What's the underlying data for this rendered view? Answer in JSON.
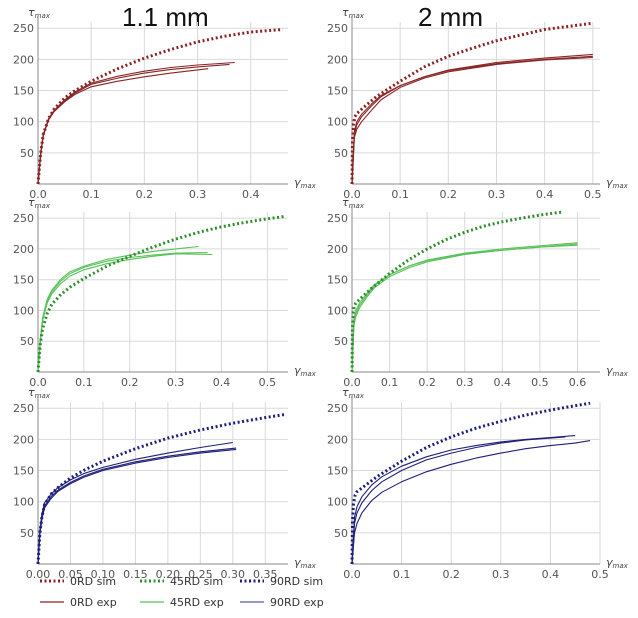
{
  "titles": [
    "1.1 mm",
    "2 mm"
  ],
  "chart_data": [
    {
      "type": "line",
      "panel": "0RD",
      "thickness": "1.1 mm",
      "ylabel": "τmax",
      "xlabel": "γmax",
      "xlim": [
        0,
        0.47
      ],
      "ylim": [
        0,
        260
      ],
      "xticks": [
        0,
        0.1,
        0.2,
        0.3,
        0.4
      ],
      "xtick_labels": [
        "0.0",
        "0.1",
        "0.2",
        "0.3",
        "0.4"
      ],
      "yticks": [
        50,
        100,
        150,
        200,
        250
      ],
      "grid": true,
      "color": "#8a2424",
      "series": [
        {
          "name": "0RD sim",
          "kind": "sim",
          "x": [
            0,
            0.005,
            0.01,
            0.02,
            0.03,
            0.05,
            0.07,
            0.1,
            0.15,
            0.2,
            0.25,
            0.3,
            0.35,
            0.4,
            0.46
          ],
          "y": [
            0,
            50,
            80,
            105,
            120,
            138,
            150,
            165,
            185,
            202,
            216,
            228,
            237,
            244,
            248
          ]
        },
        {
          "kind": "exp",
          "x": [
            0,
            0.005,
            0.01,
            0.02,
            0.03,
            0.05,
            0.07,
            0.1,
            0.15,
            0.2,
            0.25,
            0.3,
            0.37
          ],
          "y": [
            0,
            50,
            80,
            105,
            118,
            135,
            148,
            162,
            173,
            181,
            187,
            191,
            195
          ]
        },
        {
          "kind": "exp",
          "x": [
            0,
            0.005,
            0.01,
            0.02,
            0.03,
            0.05,
            0.07,
            0.1,
            0.15,
            0.2,
            0.25,
            0.3,
            0.36
          ],
          "y": [
            0,
            48,
            78,
            104,
            117,
            133,
            146,
            160,
            170,
            178,
            184,
            188,
            192
          ]
        },
        {
          "kind": "exp",
          "x": [
            0,
            0.005,
            0.01,
            0.02,
            0.03,
            0.05,
            0.07,
            0.1,
            0.15,
            0.2,
            0.25,
            0.32
          ],
          "y": [
            0,
            48,
            78,
            103,
            116,
            132,
            144,
            156,
            165,
            172,
            178,
            185
          ]
        }
      ]
    },
    {
      "type": "line",
      "panel": "0RD",
      "thickness": "2 mm",
      "ylabel": "τmax",
      "xlabel": "γmax",
      "xlim": [
        0,
        0.515
      ],
      "ylim": [
        0,
        260
      ],
      "xticks": [
        0,
        0.1,
        0.2,
        0.3,
        0.4,
        0.5
      ],
      "xtick_labels": [
        "0.0",
        "0.1",
        "0.2",
        "0.3",
        "0.4",
        "0.5"
      ],
      "yticks": [
        50,
        100,
        150,
        200,
        250
      ],
      "grid": true,
      "color": "#8a2424",
      "series": [
        {
          "name": "0RD sim",
          "kind": "sim",
          "x": [
            0,
            0.001,
            0.003,
            0.006,
            0.01,
            0.02,
            0.05,
            0.1,
            0.15,
            0.2,
            0.25,
            0.3,
            0.35,
            0.4,
            0.45,
            0.5
          ],
          "y": [
            0,
            70,
            95,
            108,
            113,
            120,
            140,
            165,
            188,
            205,
            218,
            230,
            239,
            248,
            253,
            258
          ]
        },
        {
          "kind": "exp",
          "x": [
            0,
            0.005,
            0.01,
            0.02,
            0.04,
            0.06,
            0.1,
            0.15,
            0.2,
            0.3,
            0.4,
            0.5
          ],
          "y": [
            0,
            80,
            95,
            108,
            125,
            140,
            158,
            172,
            183,
            195,
            202,
            208
          ]
        },
        {
          "kind": "exp",
          "x": [
            0,
            0.005,
            0.01,
            0.02,
            0.04,
            0.06,
            0.1,
            0.15,
            0.2,
            0.3,
            0.4,
            0.5
          ],
          "y": [
            0,
            85,
            100,
            112,
            128,
            142,
            158,
            172,
            182,
            193,
            200,
            205
          ]
        },
        {
          "kind": "exp",
          "x": [
            0,
            0.005,
            0.01,
            0.02,
            0.04,
            0.06,
            0.1,
            0.15,
            0.2,
            0.3,
            0.4,
            0.5
          ],
          "y": [
            0,
            75,
            88,
            100,
            118,
            135,
            155,
            170,
            180,
            192,
            199,
            203
          ]
        }
      ]
    },
    {
      "type": "line",
      "panel": "45RD",
      "thickness": "1.1 mm",
      "ylabel": "τmax",
      "xlabel": "γmax",
      "xlim": [
        0,
        0.545
      ],
      "ylim": [
        0,
        260
      ],
      "xticks": [
        0,
        0.1,
        0.2,
        0.3,
        0.4,
        0.5
      ],
      "xtick_labels": [
        "0.0",
        "0.1",
        "0.2",
        "0.3",
        "0.4",
        "0.5"
      ],
      "yticks": [
        50,
        100,
        150,
        200,
        250
      ],
      "grid": true,
      "color": "#2f8f2f",
      "exp_color": "#59c259",
      "series": [
        {
          "name": "45RD sim",
          "kind": "sim",
          "x": [
            0,
            0.005,
            0.01,
            0.02,
            0.03,
            0.05,
            0.07,
            0.1,
            0.15,
            0.2,
            0.25,
            0.3,
            0.35,
            0.4,
            0.45,
            0.5,
            0.54
          ],
          "y": [
            0,
            45,
            70,
            95,
            110,
            126,
            138,
            152,
            172,
            188,
            203,
            216,
            227,
            236,
            243,
            249,
            253
          ]
        },
        {
          "kind": "exp",
          "x": [
            0,
            0.005,
            0.01,
            0.02,
            0.03,
            0.05,
            0.07,
            0.1,
            0.15,
            0.2,
            0.25,
            0.3,
            0.37
          ],
          "y": [
            0,
            50,
            85,
            115,
            130,
            148,
            160,
            170,
            180,
            186,
            190,
            193,
            194
          ]
        },
        {
          "kind": "exp",
          "x": [
            0,
            0.005,
            0.01,
            0.02,
            0.03,
            0.05,
            0.07,
            0.1,
            0.15,
            0.2,
            0.25,
            0.3,
            0.35
          ],
          "y": [
            0,
            52,
            88,
            118,
            133,
            151,
            163,
            172,
            183,
            190,
            196,
            200,
            204
          ]
        },
        {
          "kind": "exp",
          "x": [
            0,
            0.005,
            0.01,
            0.02,
            0.03,
            0.05,
            0.07,
            0.1,
            0.15,
            0.2,
            0.25,
            0.3,
            0.38
          ],
          "y": [
            0,
            48,
            83,
            112,
            127,
            144,
            156,
            166,
            176,
            183,
            188,
            192,
            191
          ]
        }
      ]
    },
    {
      "type": "line",
      "panel": "45RD",
      "thickness": "2 mm",
      "ylabel": "τmax",
      "xlabel": "γmax",
      "xlim": [
        0,
        0.66
      ],
      "ylim": [
        0,
        260
      ],
      "xticks": [
        0,
        0.1,
        0.2,
        0.3,
        0.4,
        0.5,
        0.6
      ],
      "xtick_labels": [
        "0.0",
        "0.1",
        "0.2",
        "0.3",
        "0.4",
        "0.5",
        "0.6"
      ],
      "yticks": [
        50,
        100,
        150,
        200,
        250
      ],
      "grid": true,
      "color": "#2f8f2f",
      "exp_color": "#59c259",
      "series": [
        {
          "name": "45RD sim",
          "kind": "sim",
          "x": [
            0,
            0.001,
            0.003,
            0.006,
            0.01,
            0.02,
            0.05,
            0.1,
            0.15,
            0.2,
            0.25,
            0.3,
            0.35,
            0.4,
            0.45,
            0.5,
            0.56
          ],
          "y": [
            0,
            70,
            95,
            107,
            112,
            118,
            135,
            160,
            182,
            200,
            215,
            227,
            237,
            244,
            250,
            255,
            260
          ]
        },
        {
          "kind": "exp",
          "x": [
            0,
            0.005,
            0.01,
            0.02,
            0.04,
            0.06,
            0.1,
            0.15,
            0.2,
            0.3,
            0.4,
            0.5,
            0.6
          ],
          "y": [
            0,
            80,
            95,
            108,
            125,
            140,
            158,
            172,
            182,
            193,
            200,
            205,
            210
          ]
        },
        {
          "kind": "exp",
          "x": [
            0,
            0.005,
            0.01,
            0.02,
            0.04,
            0.06,
            0.1,
            0.15,
            0.2,
            0.3,
            0.4,
            0.5,
            0.6
          ],
          "y": [
            0,
            85,
            100,
            112,
            128,
            142,
            158,
            172,
            181,
            192,
            198,
            203,
            206
          ]
        },
        {
          "kind": "exp",
          "x": [
            0,
            0.005,
            0.01,
            0.02,
            0.04,
            0.06,
            0.1,
            0.15,
            0.2,
            0.3,
            0.4,
            0.5,
            0.6
          ],
          "y": [
            0,
            75,
            90,
            104,
            122,
            137,
            155,
            169,
            179,
            191,
            198,
            203,
            208
          ]
        }
      ]
    },
    {
      "type": "line",
      "panel": "90RD",
      "thickness": "1.1 mm",
      "ylabel": "τmax",
      "xlabel": "γmax",
      "xlim": [
        0,
        0.385
      ],
      "ylim": [
        0,
        260
      ],
      "xticks": [
        0,
        0.05,
        0.1,
        0.15,
        0.2,
        0.25,
        0.3,
        0.35
      ],
      "xtick_labels": [
        "0.00",
        "0.05",
        "0.10",
        "0.15",
        "0.20",
        "0.25",
        "0.30",
        "0.35"
      ],
      "yticks": [
        50,
        100,
        150,
        200,
        250
      ],
      "grid": true,
      "color": "#1f1f7a",
      "series": [
        {
          "name": "90RD sim",
          "kind": "sim",
          "x": [
            0,
            0.003,
            0.006,
            0.01,
            0.02,
            0.03,
            0.05,
            0.07,
            0.1,
            0.15,
            0.2,
            0.25,
            0.3,
            0.35,
            0.38
          ],
          "y": [
            0,
            50,
            75,
            95,
            112,
            122,
            138,
            150,
            165,
            185,
            202,
            215,
            226,
            235,
            240
          ]
        },
        {
          "kind": "exp",
          "x": [
            0,
            0.003,
            0.006,
            0.01,
            0.02,
            0.03,
            0.05,
            0.07,
            0.1,
            0.15,
            0.2,
            0.25,
            0.3
          ],
          "y": [
            0,
            55,
            80,
            98,
            112,
            122,
            135,
            145,
            155,
            168,
            178,
            187,
            195
          ]
        },
        {
          "kind": "exp",
          "x": [
            0,
            0.003,
            0.006,
            0.01,
            0.02,
            0.03,
            0.05,
            0.07,
            0.1,
            0.15,
            0.2,
            0.25,
            0.305
          ],
          "y": [
            0,
            50,
            75,
            93,
            108,
            118,
            131,
            141,
            152,
            164,
            173,
            180,
            186
          ]
        },
        {
          "kind": "exp",
          "x": [
            0,
            0.003,
            0.006,
            0.01,
            0.02,
            0.03,
            0.05,
            0.07,
            0.1,
            0.15,
            0.2,
            0.25,
            0.305
          ],
          "y": [
            0,
            48,
            72,
            90,
            105,
            116,
            129,
            139,
            150,
            162,
            171,
            178,
            184
          ]
        }
      ]
    },
    {
      "type": "line",
      "panel": "90RD",
      "thickness": "2 mm",
      "ylabel": "τmax",
      "xlabel": "γmax",
      "xlim": [
        0,
        0.5
      ],
      "ylim": [
        0,
        260
      ],
      "xticks": [
        0,
        0.1,
        0.2,
        0.3,
        0.4,
        0.5
      ],
      "xtick_labels": [
        "0.0",
        "0.1",
        "0.2",
        "0.3",
        "0.4",
        "0.5"
      ],
      "yticks": [
        50,
        100,
        150,
        200,
        250
      ],
      "grid": true,
      "color": "#1f1f7a",
      "series": [
        {
          "name": "90RD sim",
          "kind": "sim",
          "x": [
            0,
            0.001,
            0.003,
            0.006,
            0.01,
            0.02,
            0.05,
            0.1,
            0.15,
            0.2,
            0.25,
            0.3,
            0.35,
            0.4,
            0.45,
            0.48
          ],
          "y": [
            0,
            70,
            97,
            110,
            116,
            122,
            140,
            165,
            187,
            204,
            218,
            229,
            239,
            247,
            254,
            258
          ]
        },
        {
          "kind": "exp",
          "x": [
            0,
            0.005,
            0.01,
            0.02,
            0.04,
            0.06,
            0.1,
            0.15,
            0.2,
            0.25,
            0.3,
            0.35,
            0.4,
            0.45
          ],
          "y": [
            0,
            75,
            92,
            108,
            127,
            140,
            157,
            172,
            183,
            190,
            196,
            200,
            203,
            206
          ]
        },
        {
          "kind": "exp",
          "x": [
            0,
            0.005,
            0.01,
            0.02,
            0.04,
            0.06,
            0.1,
            0.15,
            0.2,
            0.25,
            0.3,
            0.35,
            0.4,
            0.43
          ],
          "y": [
            0,
            65,
            82,
            98,
            118,
            132,
            150,
            167,
            178,
            187,
            194,
            199,
            202,
            204
          ]
        },
        {
          "kind": "exp",
          "x": [
            0,
            0.005,
            0.01,
            0.02,
            0.04,
            0.06,
            0.1,
            0.15,
            0.2,
            0.25,
            0.3,
            0.35,
            0.4,
            0.45,
            0.48
          ],
          "y": [
            0,
            50,
            65,
            82,
            102,
            115,
            132,
            148,
            160,
            170,
            178,
            185,
            190,
            194,
            198
          ]
        }
      ]
    }
  ],
  "legend": [
    {
      "label": "0RD sim",
      "color": "#8a2424",
      "style": "dotted"
    },
    {
      "label": "45RD sim",
      "color": "#2f8f2f",
      "style": "dotted"
    },
    {
      "label": "90RD sim",
      "color": "#1f1f7a",
      "style": "dotted"
    },
    {
      "label": "0RD exp",
      "color": "#8a2424",
      "style": "solid"
    },
    {
      "label": "45RD exp",
      "color": "#59c259",
      "style": "solid"
    },
    {
      "label": "90RD exp",
      "color": "#5a5ab4",
      "style": "solid"
    }
  ]
}
